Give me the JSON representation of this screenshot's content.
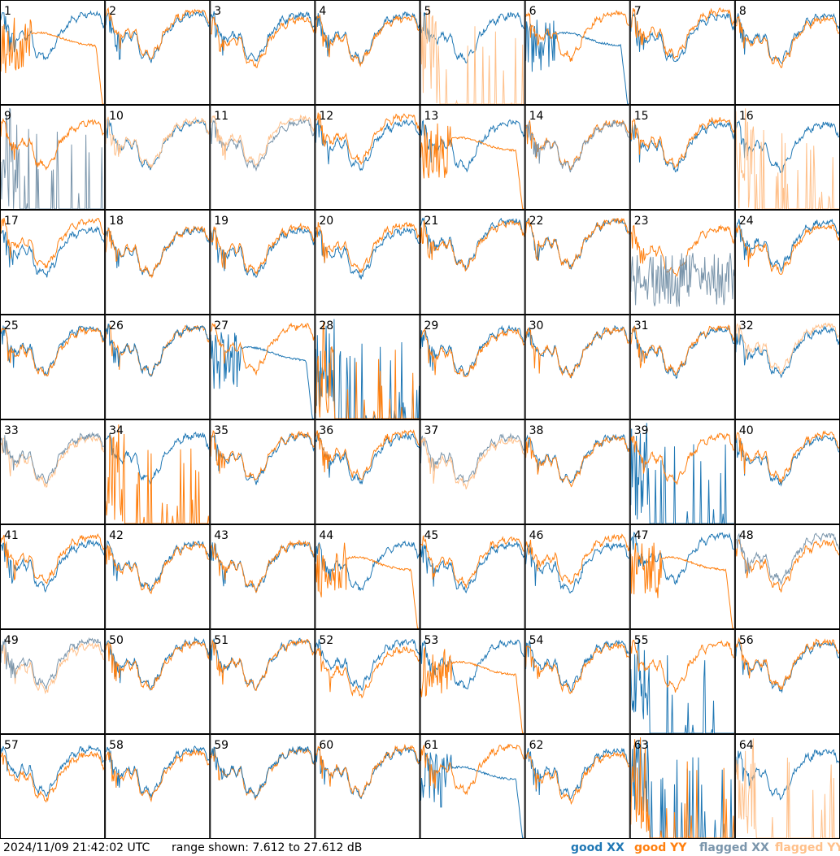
{
  "footer": {
    "timestamp": "2024/11/09 21:42:02 UTC",
    "range_text": "range shown: 7.612 to 27.612 dB"
  },
  "legend": [
    {
      "label": "good XX",
      "color": "#1f77b4"
    },
    {
      "label": "good YY",
      "color": "#ff7f0e"
    },
    {
      "label": "flagged XX",
      "color": "#7a95ab"
    },
    {
      "label": "flagged YY",
      "color": "#ffc08a"
    }
  ],
  "chart_data": {
    "type": "line",
    "layout": "small-multiples 8x8",
    "ylim": [
      7.612,
      27.612
    ],
    "yunit": "dB",
    "panel_ids": [
      "1",
      "2",
      "3",
      "4",
      "5",
      "6",
      "7",
      "8",
      "9",
      "10",
      "11",
      "12",
      "13",
      "14",
      "15",
      "16",
      "17",
      "18",
      "19",
      "20",
      "21",
      "22",
      "23",
      "24",
      "25",
      "26",
      "27",
      "28",
      "29",
      "30",
      "31",
      "32",
      "33",
      "34",
      "35",
      "36",
      "37",
      "38",
      "39",
      "40",
      "41",
      "42",
      "43",
      "44",
      "45",
      "46",
      "47",
      "48",
      "49",
      "50",
      "51",
      "52",
      "53",
      "54",
      "55",
      "56",
      "57",
      "58",
      "59",
      "60",
      "61",
      "62",
      "63",
      "64"
    ],
    "panel_states": {
      "flagged_xx": [
        9,
        11,
        14,
        23,
        33,
        37,
        48,
        49
      ],
      "flagged_yy": [
        5,
        10,
        11,
        16,
        32,
        33,
        37,
        49,
        64
      ],
      "xx_overlaid_on_yy": [
        14,
        23,
        26,
        33,
        48,
        49,
        59
      ]
    }
  }
}
